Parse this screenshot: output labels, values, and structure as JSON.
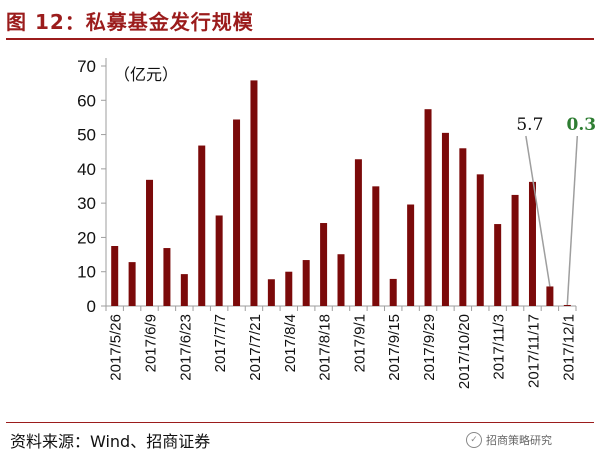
{
  "figure": {
    "title": "图 12：私募基金发行规模",
    "source": "资料来源：Wind、招商证券",
    "watermark": "招商策略研究"
  },
  "colors": {
    "bar": "#7b0a0a",
    "title": "#9b1c1c",
    "annotation_dark": "#111111",
    "annotation_green": "#2e7d32",
    "leader_line": "#9e9e9e"
  },
  "chart_data": {
    "type": "bar",
    "ylabel": "（亿元）",
    "ylim": [
      0,
      70
    ],
    "yticks": [
      "0",
      "10",
      "20",
      "30",
      "40",
      "50",
      "60",
      "70"
    ],
    "tick_labels": [
      "2017/5/26",
      "2017/6/9",
      "2017/6/23",
      "2017/7/7",
      "2017/7/21",
      "2017/8/4",
      "2017/8/18",
      "2017/9/1",
      "2017/9/15",
      "2017/9/29",
      "2017/10/20",
      "2017/11/3",
      "2017/11/17",
      "2017/12/1"
    ],
    "values": [
      17.5,
      12.8,
      36.8,
      16.9,
      9.3,
      46.8,
      26.4,
      54.4,
      65.8,
      7.8,
      10.0,
      13.4,
      24.2,
      15.1,
      42.8,
      34.9,
      7.9,
      29.6,
      57.4,
      50.5,
      46.0,
      38.4,
      23.9,
      32.4,
      36.2,
      5.7,
      0.3
    ],
    "annotations": [
      {
        "text": "5.7",
        "bar_index": 25,
        "style": "dark"
      },
      {
        "text": "0.3",
        "bar_index": 26,
        "style": "green"
      }
    ],
    "grid": false
  }
}
